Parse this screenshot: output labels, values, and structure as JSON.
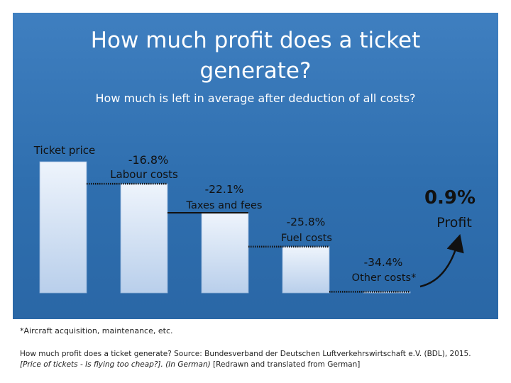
{
  "title_line1": "How much profit does a ticket",
  "title_line2": "generate?",
  "subtitle": "How much is left in average after deduction of all costs?",
  "footnote": "*Aircraft acquisition, maintenance, etc.",
  "source_line1": "How much profit does a ticket generate? Source: Bundesverband der Deutschen Luftverkehrswirtschaft e.V. (BDL), 2015.",
  "source_line2_italic": "[Price of tickets - Is flying too cheap?]. (In German)",
  "source_line2_rest": " [Redrawn and translated from German]",
  "colors": {
    "panel": "#3572b4",
    "bar_light": "#e8f0fb",
    "bar_dark": "#b7cdea",
    "text": "#111111"
  },
  "chart_data": {
    "type": "bar",
    "categories": [
      "Ticket price",
      "Labour costs",
      "Taxes and fees",
      "Fuel costs",
      "Other costs*",
      "Profit"
    ],
    "values": [
      100,
      83.2,
      61.1,
      35.3,
      0.9,
      0.9
    ],
    "value_labels": [
      "",
      "-16.8%",
      "-22.1%",
      "-25.8%",
      "-34.4%",
      "0.9%"
    ],
    "changes_percent": [
      100,
      -16.8,
      -22.1,
      -25.8,
      -34.4,
      0.9
    ],
    "ylim": [
      0,
      100
    ],
    "title": "How much profit does a ticket generate?",
    "subtitle": "How much is left in average after deduction of all costs?"
  }
}
